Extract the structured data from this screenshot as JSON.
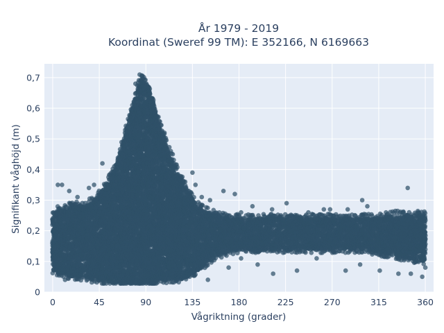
{
  "chart_data": {
    "type": "scatter",
    "title_lines": [
      "År 1979 - 2019",
      "Koordinat (Sweref 99 TM): E 352166, N 6169663"
    ],
    "xlabel": "Vågriktning (grader)",
    "ylabel": "Signifikant våghöjd (m)",
    "xlim": [
      -8,
      368
    ],
    "ylim": [
      0,
      0.745
    ],
    "xticks": [
      0,
      45,
      90,
      135,
      180,
      225,
      270,
      315,
      360
    ],
    "xtick_labels": [
      "0",
      "45",
      "90",
      "135",
      "180",
      "225",
      "270",
      "315",
      "360"
    ],
    "yticks": [
      0,
      0.1,
      0.2,
      0.3,
      0.4,
      0.5,
      0.6,
      0.7
    ],
    "ytick_labels": [
      "0",
      "0,1",
      "0,2",
      "0,3",
      "0,4",
      "0,5",
      "0,6",
      "0,7"
    ],
    "grid": true,
    "legend": "none",
    "colors": {
      "plot_bg": "#e5ecf6",
      "grid": "#ffffff",
      "marker": "#2f5068",
      "text": "#2a3f5f"
    },
    "envelope": {
      "x": [
        0,
        10,
        20,
        30,
        40,
        50,
        60,
        70,
        80,
        85,
        90,
        95,
        100,
        110,
        120,
        130,
        140,
        150,
        160,
        170,
        180,
        200,
        225,
        250,
        270,
        300,
        315,
        330,
        345,
        360
      ],
      "upper": [
        0.26,
        0.27,
        0.28,
        0.28,
        0.3,
        0.34,
        0.4,
        0.52,
        0.64,
        0.7,
        0.68,
        0.65,
        0.58,
        0.48,
        0.4,
        0.33,
        0.28,
        0.26,
        0.25,
        0.24,
        0.24,
        0.24,
        0.24,
        0.24,
        0.24,
        0.24,
        0.24,
        0.25,
        0.25,
        0.25
      ],
      "lower": [
        0.07,
        0.06,
        0.05,
        0.05,
        0.04,
        0.035,
        0.03,
        0.03,
        0.03,
        0.03,
        0.03,
        0.03,
        0.035,
        0.04,
        0.04,
        0.05,
        0.07,
        0.1,
        0.12,
        0.13,
        0.14,
        0.14,
        0.14,
        0.14,
        0.14,
        0.14,
        0.13,
        0.12,
        0.11,
        0.1
      ]
    },
    "outliers": [
      {
        "x": 5,
        "y": 0.35
      },
      {
        "x": 9,
        "y": 0.35
      },
      {
        "x": 16,
        "y": 0.33
      },
      {
        "x": 24,
        "y": 0.31
      },
      {
        "x": 35,
        "y": 0.34
      },
      {
        "x": 40,
        "y": 0.35
      },
      {
        "x": 48,
        "y": 0.42
      },
      {
        "x": 56,
        "y": 0.37
      },
      {
        "x": 84,
        "y": 0.71
      },
      {
        "x": 86,
        "y": 0.705
      },
      {
        "x": 80,
        "y": 0.68
      },
      {
        "x": 92,
        "y": 0.67
      },
      {
        "x": 97,
        "y": 0.62
      },
      {
        "x": 108,
        "y": 0.52
      },
      {
        "x": 116,
        "y": 0.45
      },
      {
        "x": 135,
        "y": 0.39
      },
      {
        "x": 128,
        "y": 0.36
      },
      {
        "x": 138,
        "y": 0.35
      },
      {
        "x": 144,
        "y": 0.31
      },
      {
        "x": 152,
        "y": 0.3
      },
      {
        "x": 165,
        "y": 0.33
      },
      {
        "x": 176,
        "y": 0.32
      },
      {
        "x": 182,
        "y": 0.26
      },
      {
        "x": 193,
        "y": 0.28
      },
      {
        "x": 212,
        "y": 0.27
      },
      {
        "x": 226,
        "y": 0.29
      },
      {
        "x": 236,
        "y": 0.25
      },
      {
        "x": 247,
        "y": 0.26
      },
      {
        "x": 262,
        "y": 0.27
      },
      {
        "x": 268,
        "y": 0.27
      },
      {
        "x": 285,
        "y": 0.27
      },
      {
        "x": 299,
        "y": 0.3
      },
      {
        "x": 304,
        "y": 0.28
      },
      {
        "x": 322,
        "y": 0.26
      },
      {
        "x": 339,
        "y": 0.26
      },
      {
        "x": 343,
        "y": 0.34
      },
      {
        "x": 353,
        "y": 0.26
      },
      {
        "x": 150,
        "y": 0.04
      },
      {
        "x": 170,
        "y": 0.08
      },
      {
        "x": 182,
        "y": 0.11
      },
      {
        "x": 198,
        "y": 0.09
      },
      {
        "x": 213,
        "y": 0.06
      },
      {
        "x": 236,
        "y": 0.07
      },
      {
        "x": 255,
        "y": 0.11
      },
      {
        "x": 283,
        "y": 0.07
      },
      {
        "x": 297,
        "y": 0.09
      },
      {
        "x": 316,
        "y": 0.07
      },
      {
        "x": 334,
        "y": 0.06
      },
      {
        "x": 346,
        "y": 0.06
      },
      {
        "x": 357,
        "y": 0.05
      },
      {
        "x": 360,
        "y": 0.08
      },
      {
        "x": 12,
        "y": 0.04
      }
    ]
  }
}
